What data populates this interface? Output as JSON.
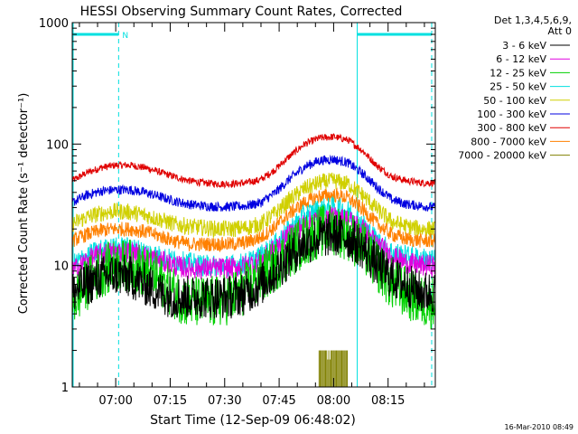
{
  "chart_data": {
    "type": "line",
    "title": "HESSI Observing Summary Count Rates, Corrected",
    "xlabel": "Start Time (12-Sep-09 06:48:02)",
    "ylabel": "Corrected Count Rate (s⁻¹ detector⁻¹)",
    "x_range_minutes_of_day": [
      408.03,
      508.0
    ],
    "y_range": [
      1,
      1000
    ],
    "y_scale": "log",
    "x_ticks": [
      {
        "label": "07:00",
        "t": 420
      },
      {
        "label": "07:15",
        "t": 435
      },
      {
        "label": "07:30",
        "t": 450
      },
      {
        "label": "07:45",
        "t": 465
      },
      {
        "label": "08:00",
        "t": 480
      },
      {
        "label": "08:15",
        "t": 495
      }
    ],
    "y_ticks": [
      {
        "label": "1",
        "v": 1
      },
      {
        "label": "10",
        "v": 10
      },
      {
        "label": "100",
        "v": 100
      },
      {
        "label": "1000",
        "v": 1000
      }
    ],
    "legend_header": [
      "Det 1,3,4,5,6,9,",
      "Att 0"
    ],
    "series": [
      {
        "name": "3 - 6 keV",
        "color": "#000000",
        "noise": 0.18,
        "points": [
          [
            408.03,
            6
          ],
          [
            412,
            7
          ],
          [
            416,
            8
          ],
          [
            420,
            8.5
          ],
          [
            424,
            8
          ],
          [
            428,
            7
          ],
          [
            432,
            6
          ],
          [
            436,
            5.5
          ],
          [
            440,
            5.5
          ],
          [
            444,
            5.5
          ],
          [
            448,
            5.5
          ],
          [
            452,
            5.5
          ],
          [
            456,
            6
          ],
          [
            460,
            7
          ],
          [
            464,
            9
          ],
          [
            468,
            12
          ],
          [
            472,
            15
          ],
          [
            476,
            17
          ],
          [
            480,
            18
          ],
          [
            484,
            17
          ],
          [
            488,
            14
          ],
          [
            492,
            10
          ],
          [
            496,
            8
          ],
          [
            500,
            7
          ],
          [
            504,
            6
          ],
          [
            508,
            6
          ]
        ]
      },
      {
        "name": "6 - 12 keV",
        "color": "#e000e0",
        "noise": 0.09,
        "points": [
          [
            408.03,
            9
          ],
          [
            412,
            11
          ],
          [
            416,
            12.5
          ],
          [
            420,
            13
          ],
          [
            424,
            13
          ],
          [
            428,
            12
          ],
          [
            432,
            11
          ],
          [
            436,
            10
          ],
          [
            440,
            9.5
          ],
          [
            444,
            9.5
          ],
          [
            448,
            9.5
          ],
          [
            452,
            9.5
          ],
          [
            456,
            10
          ],
          [
            460,
            11
          ],
          [
            464,
            14
          ],
          [
            468,
            18
          ],
          [
            472,
            22
          ],
          [
            476,
            24.5
          ],
          [
            480,
            25
          ],
          [
            484,
            24
          ],
          [
            488,
            20
          ],
          [
            492,
            15
          ],
          [
            496,
            12
          ],
          [
            500,
            10.5
          ],
          [
            504,
            10
          ],
          [
            508,
            10
          ]
        ]
      },
      {
        "name": "12 - 25 keV",
        "color": "#00d000",
        "noise": 0.22,
        "points": [
          [
            408.03,
            5
          ],
          [
            412,
            7
          ],
          [
            416,
            9
          ],
          [
            420,
            10
          ],
          [
            424,
            10
          ],
          [
            428,
            9
          ],
          [
            432,
            7.5
          ],
          [
            436,
            6
          ],
          [
            440,
            5
          ],
          [
            444,
            5
          ],
          [
            448,
            5
          ],
          [
            452,
            5.5
          ],
          [
            456,
            6.5
          ],
          [
            460,
            8
          ],
          [
            464,
            10
          ],
          [
            468,
            13
          ],
          [
            472,
            16
          ],
          [
            476,
            19
          ],
          [
            480,
            20
          ],
          [
            484,
            18
          ],
          [
            488,
            14
          ],
          [
            492,
            10
          ],
          [
            496,
            7
          ],
          [
            500,
            6
          ],
          [
            504,
            5
          ],
          [
            508,
            5
          ]
        ]
      },
      {
        "name": "25 - 50 keV",
        "color": "#00e0e0",
        "noise": 0.09,
        "points": [
          [
            408.03,
            10
          ],
          [
            412,
            12
          ],
          [
            416,
            13.5
          ],
          [
            420,
            14
          ],
          [
            424,
            14
          ],
          [
            428,
            13
          ],
          [
            432,
            12
          ],
          [
            436,
            11
          ],
          [
            440,
            10.5
          ],
          [
            444,
            10
          ],
          [
            448,
            10
          ],
          [
            452,
            10
          ],
          [
            456,
            10.5
          ],
          [
            460,
            12
          ],
          [
            464,
            15
          ],
          [
            468,
            20
          ],
          [
            472,
            26
          ],
          [
            476,
            29
          ],
          [
            480,
            30
          ],
          [
            484,
            28
          ],
          [
            488,
            22
          ],
          [
            492,
            16
          ],
          [
            496,
            13
          ],
          [
            500,
            12
          ],
          [
            504,
            11.5
          ],
          [
            508,
            11
          ]
        ]
      },
      {
        "name": "50 - 100 keV",
        "color": "#d0d000",
        "noise": 0.07,
        "points": [
          [
            408.03,
            22
          ],
          [
            412,
            25
          ],
          [
            416,
            27
          ],
          [
            420,
            28
          ],
          [
            424,
            27.5
          ],
          [
            428,
            26
          ],
          [
            432,
            24
          ],
          [
            436,
            22
          ],
          [
            440,
            21
          ],
          [
            444,
            20.5
          ],
          [
            448,
            20
          ],
          [
            452,
            20
          ],
          [
            456,
            20.5
          ],
          [
            460,
            22
          ],
          [
            464,
            27
          ],
          [
            468,
            35
          ],
          [
            472,
            43
          ],
          [
            476,
            48
          ],
          [
            480,
            50
          ],
          [
            484,
            47
          ],
          [
            488,
            38
          ],
          [
            492,
            29
          ],
          [
            496,
            23
          ],
          [
            500,
            21
          ],
          [
            504,
            20
          ],
          [
            508,
            20
          ]
        ]
      },
      {
        "name": "100 - 300 keV",
        "color": "#0000e0",
        "noise": 0.04,
        "points": [
          [
            408.03,
            33
          ],
          [
            412,
            38
          ],
          [
            416,
            41
          ],
          [
            420,
            42
          ],
          [
            424,
            42
          ],
          [
            428,
            40
          ],
          [
            432,
            37
          ],
          [
            436,
            34
          ],
          [
            440,
            32
          ],
          [
            444,
            31
          ],
          [
            448,
            30.5
          ],
          [
            452,
            30.5
          ],
          [
            456,
            31
          ],
          [
            460,
            33
          ],
          [
            464,
            40
          ],
          [
            468,
            52
          ],
          [
            472,
            65
          ],
          [
            476,
            73
          ],
          [
            480,
            75
          ],
          [
            484,
            70
          ],
          [
            488,
            57
          ],
          [
            492,
            44
          ],
          [
            496,
            35
          ],
          [
            500,
            32
          ],
          [
            504,
            31
          ],
          [
            508,
            30
          ]
        ]
      },
      {
        "name": "300 - 800 keV",
        "color": "#e00000",
        "noise": 0.03,
        "points": [
          [
            408.03,
            50
          ],
          [
            412,
            58
          ],
          [
            416,
            64
          ],
          [
            420,
            67
          ],
          [
            424,
            67
          ],
          [
            428,
            64
          ],
          [
            432,
            59
          ],
          [
            436,
            54
          ],
          [
            440,
            50
          ],
          [
            444,
            48
          ],
          [
            448,
            47
          ],
          [
            452,
            47
          ],
          [
            456,
            48
          ],
          [
            460,
            51
          ],
          [
            464,
            62
          ],
          [
            468,
            80
          ],
          [
            472,
            100
          ],
          [
            476,
            112
          ],
          [
            480,
            115
          ],
          [
            484,
            108
          ],
          [
            488,
            88
          ],
          [
            492,
            66
          ],
          [
            496,
            54
          ],
          [
            500,
            50
          ],
          [
            504,
            48
          ],
          [
            508,
            48
          ]
        ]
      },
      {
        "name": "800 - 7000 keV",
        "color": "#ff8000",
        "noise": 0.06,
        "points": [
          [
            408.03,
            16
          ],
          [
            412,
            18
          ],
          [
            416,
            19.5
          ],
          [
            420,
            20
          ],
          [
            424,
            20
          ],
          [
            428,
            19
          ],
          [
            432,
            17.5
          ],
          [
            436,
            16
          ],
          [
            440,
            15
          ],
          [
            444,
            15
          ],
          [
            448,
            15
          ],
          [
            452,
            15
          ],
          [
            456,
            15.5
          ],
          [
            460,
            17
          ],
          [
            464,
            21
          ],
          [
            468,
            27
          ],
          [
            472,
            33
          ],
          [
            476,
            37
          ],
          [
            480,
            38
          ],
          [
            484,
            36
          ],
          [
            488,
            29
          ],
          [
            492,
            22
          ],
          [
            496,
            18
          ],
          [
            500,
            16.5
          ],
          [
            504,
            16
          ],
          [
            508,
            16
          ]
        ]
      },
      {
        "name": "7000 - 20000 keV",
        "color": "#808000",
        "noise": 0,
        "points": [
          [
            476,
            2
          ],
          [
            478,
            2
          ],
          [
            480,
            2
          ],
          [
            482,
            2
          ],
          [
            484,
            2
          ]
        ]
      }
    ],
    "attenuator_segments": [
      {
        "from": 408.03,
        "to": 420.8
      },
      {
        "from": 486.5,
        "to": 507.0
      }
    ],
    "segment_label": "N",
    "segment_level": 800,
    "vertical_markers_dashed": [
      420.8,
      507.0
    ],
    "vertical_markers_solid": [
      486.5
    ],
    "colors": {
      "attenuator": "#00e0e0",
      "axis": "#000000"
    }
  },
  "footer": {
    "timestamp": "16-Mar-2010 08:49"
  }
}
